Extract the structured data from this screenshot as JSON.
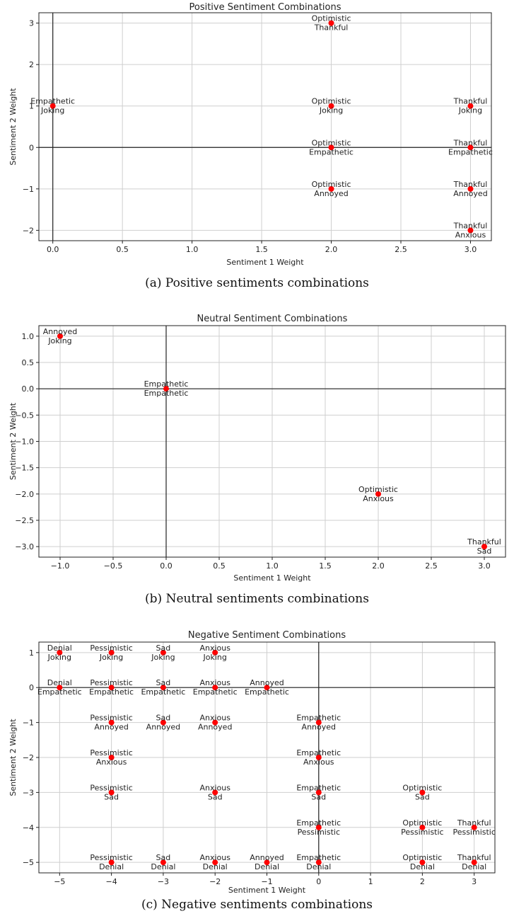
{
  "captions": [
    "(a)  Positive sentiments combinations",
    "(b)  Neutral sentiments combinations",
    "(c)  Negative sentiments combinations"
  ],
  "chart_data": [
    {
      "type": "scatter",
      "title": "Positive Sentiment Combinations",
      "xlabel": "Sentiment 1 Weight",
      "ylabel": "Sentiment 2 Weight",
      "xlim": [
        -0.1,
        3.15
      ],
      "ylim": [
        -2.25,
        3.25
      ],
      "xticks": [
        0.0,
        0.5,
        1.0,
        1.5,
        2.0,
        2.5,
        3.0
      ],
      "xtick_labels": [
        "0.0",
        "0.5",
        "1.0",
        "1.5",
        "2.0",
        "2.5",
        "3.0"
      ],
      "yticks": [
        -2,
        -1,
        0,
        1,
        2,
        3
      ],
      "ytick_labels": [
        "−2",
        "−1",
        "0",
        "1",
        "2",
        "3"
      ],
      "grid": true,
      "marker_color": "#ff0000",
      "points": [
        {
          "x": 2,
          "y": 3,
          "label1": "Optimistic",
          "label2": "Thankful"
        },
        {
          "x": 0,
          "y": 1,
          "label1": "Empathetic",
          "label2": "Joking"
        },
        {
          "x": 2,
          "y": 1,
          "label1": "Optimistic",
          "label2": "Joking"
        },
        {
          "x": 3,
          "y": 1,
          "label1": "Thankful",
          "label2": "Joking"
        },
        {
          "x": 2,
          "y": 0,
          "label1": "Optimistic",
          "label2": "Empathetic"
        },
        {
          "x": 3,
          "y": 0,
          "label1": "Thankful",
          "label2": "Empathetic"
        },
        {
          "x": 2,
          "y": -1,
          "label1": "Optimistic",
          "label2": "Annoyed"
        },
        {
          "x": 3,
          "y": -1,
          "label1": "Thankful",
          "label2": "Annoyed"
        },
        {
          "x": 3,
          "y": -2,
          "label1": "Thankful",
          "label2": "Anxious"
        }
      ]
    },
    {
      "type": "scatter",
      "title": "Neutral Sentiment Combinations",
      "xlabel": "Sentiment 1 Weight",
      "ylabel": "Sentiment 2 Weight",
      "xlim": [
        -1.2,
        3.2
      ],
      "ylim": [
        -3.2,
        1.2
      ],
      "xticks": [
        -1.0,
        -0.5,
        0.0,
        0.5,
        1.0,
        1.5,
        2.0,
        2.5,
        3.0
      ],
      "xtick_labels": [
        "−1.0",
        "−0.5",
        "0.0",
        "0.5",
        "1.0",
        "1.5",
        "2.0",
        "2.5",
        "3.0"
      ],
      "yticks": [
        1.0,
        0.5,
        0.0,
        -0.5,
        -1.0,
        -1.5,
        -2.0,
        -2.5,
        -3.0
      ],
      "ytick_labels": [
        "1.0",
        "0.5",
        "0.0",
        "−0.5",
        "−1.0",
        "−1.5",
        "−2.0",
        "−2.5",
        "−3.0"
      ],
      "grid": true,
      "marker_color": "#ff0000",
      "points": [
        {
          "x": -1,
          "y": 1,
          "label1": "Annoyed",
          "label2": "Joking"
        },
        {
          "x": 0,
          "y": 0,
          "label1": "Empathetic",
          "label2": "Empathetic"
        },
        {
          "x": 2,
          "y": -2,
          "label1": "Optimistic",
          "label2": "Anxious"
        },
        {
          "x": 3,
          "y": -3,
          "label1": "Thankful",
          "label2": "Sad"
        }
      ]
    },
    {
      "type": "scatter",
      "title": "Negative Sentiment Combinations",
      "xlabel": "Sentiment 1 Weight",
      "ylabel": "Sentiment 2 Weight",
      "xlim": [
        -5.4,
        3.4
      ],
      "ylim": [
        -5.3,
        1.3
      ],
      "xticks": [
        -5,
        -4,
        -3,
        -2,
        -1,
        0,
        1,
        2,
        3
      ],
      "xtick_labels": [
        "−5",
        "−4",
        "−3",
        "−2",
        "−1",
        "0",
        "1",
        "2",
        "3"
      ],
      "yticks": [
        1,
        0,
        -1,
        -2,
        -3,
        -4,
        -5
      ],
      "ytick_labels": [
        "1",
        "0",
        "−1",
        "−2",
        "−3",
        "−4",
        "−5"
      ],
      "grid": true,
      "marker_color": "#ff0000",
      "points": [
        {
          "x": -5,
          "y": 1,
          "label1": "Denial",
          "label2": "Joking"
        },
        {
          "x": -4,
          "y": 1,
          "label1": "Pessimistic",
          "label2": "Joking"
        },
        {
          "x": -3,
          "y": 1,
          "label1": "Sad",
          "label2": "Joking"
        },
        {
          "x": -2,
          "y": 1,
          "label1": "Anxious",
          "label2": "Joking"
        },
        {
          "x": -5,
          "y": 0,
          "label1": "Denial",
          "label2": "Empathetic"
        },
        {
          "x": -4,
          "y": 0,
          "label1": "Pessimistic",
          "label2": "Empathetic"
        },
        {
          "x": -3,
          "y": 0,
          "label1": "Sad",
          "label2": "Empathetic"
        },
        {
          "x": -2,
          "y": 0,
          "label1": "Anxious",
          "label2": "Empathetic"
        },
        {
          "x": -1,
          "y": 0,
          "label1": "Annoyed",
          "label2": "Empathetic"
        },
        {
          "x": -4,
          "y": -1,
          "label1": "Pessimistic",
          "label2": "Annoyed"
        },
        {
          "x": -3,
          "y": -1,
          "label1": "Sad",
          "label2": "Annoyed"
        },
        {
          "x": -2,
          "y": -1,
          "label1": "Anxious",
          "label2": "Annoyed"
        },
        {
          "x": 0,
          "y": -1,
          "label1": "Empathetic",
          "label2": "Annoyed"
        },
        {
          "x": -4,
          "y": -2,
          "label1": "Pessimistic",
          "label2": "Anxious"
        },
        {
          "x": 0,
          "y": -2,
          "label1": "Empathetic",
          "label2": "Anxious"
        },
        {
          "x": -4,
          "y": -3,
          "label1": "Pessimistic",
          "label2": "Sad"
        },
        {
          "x": -2,
          "y": -3,
          "label1": "Anxious",
          "label2": "Sad"
        },
        {
          "x": 0,
          "y": -3,
          "label1": "Empathetic",
          "label2": "Sad"
        },
        {
          "x": 2,
          "y": -3,
          "label1": "Optimistic",
          "label2": "Sad"
        },
        {
          "x": 0,
          "y": -4,
          "label1": "Empathetic",
          "label2": "Pessimistic"
        },
        {
          "x": 2,
          "y": -4,
          "label1": "Optimistic",
          "label2": "Pessimistic"
        },
        {
          "x": 3,
          "y": -4,
          "label1": "Thankful",
          "label2": "Pessimistic"
        },
        {
          "x": -4,
          "y": -5,
          "label1": "Pessimistic",
          "label2": "Denial"
        },
        {
          "x": -3,
          "y": -5,
          "label1": "Sad",
          "label2": "Denial"
        },
        {
          "x": -2,
          "y": -5,
          "label1": "Anxious",
          "label2": "Denial"
        },
        {
          "x": -1,
          "y": -5,
          "label1": "Annoyed",
          "label2": "Denial"
        },
        {
          "x": 0,
          "y": -5,
          "label1": "Empathetic",
          "label2": "Denial"
        },
        {
          "x": 2,
          "y": -5,
          "label1": "Optimistic",
          "label2": "Denial"
        },
        {
          "x": 3,
          "y": -5,
          "label1": "Thankful",
          "label2": "Denial"
        }
      ]
    }
  ]
}
